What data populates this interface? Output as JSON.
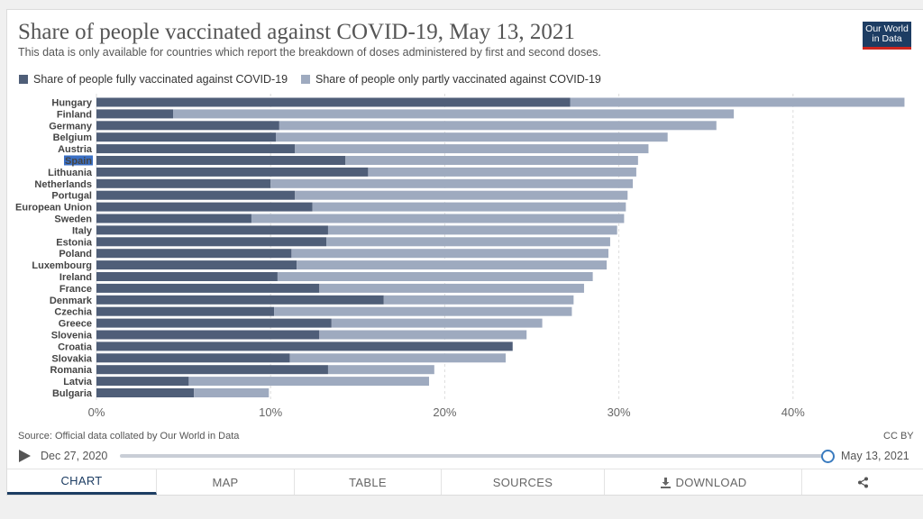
{
  "header": {
    "title": "Share of people vaccinated against COVID-19, May 13, 2021",
    "subtitle": "This data is only available for countries which report the breakdown of doses administered by first and second doses.",
    "logo_line1": "Our World",
    "logo_line2": "in Data"
  },
  "legend": {
    "fully": "Share of people fully vaccinated against COVID-19",
    "partly": "Share of people only partly vaccinated against COVID-19"
  },
  "colors": {
    "fully": "#4f5e78",
    "partly": "#9eaabf",
    "grid": "#dddddd",
    "highlight": "#3a6fc4"
  },
  "chart_data": {
    "type": "bar",
    "orientation": "horizontal",
    "stacked": true,
    "title": "Share of people vaccinated against COVID-19, May 13, 2021",
    "categories": [
      "Hungary",
      "Finland",
      "Germany",
      "Belgium",
      "Austria",
      "Spain",
      "Lithuania",
      "Netherlands",
      "Portugal",
      "European Union",
      "Sweden",
      "Italy",
      "Estonia",
      "Poland",
      "Luxembourg",
      "Ireland",
      "France",
      "Denmark",
      "Czechia",
      "Greece",
      "Slovenia",
      "Croatia",
      "Slovakia",
      "Romania",
      "Latvia",
      "Bulgaria"
    ],
    "highlighted": "Spain",
    "series": [
      {
        "name": "Share of people fully vaccinated against COVID-19",
        "values": [
          27.2,
          4.4,
          10.5,
          10.3,
          11.4,
          14.3,
          15.6,
          10.0,
          11.4,
          12.4,
          8.9,
          13.3,
          13.2,
          11.2,
          11.5,
          10.4,
          12.8,
          16.5,
          10.2,
          13.5,
          12.8,
          23.9,
          11.1,
          13.3,
          5.3,
          5.6
        ]
      },
      {
        "name": "Share of people only partly vaccinated against COVID-19",
        "values": [
          19.2,
          32.2,
          25.1,
          22.5,
          20.3,
          16.8,
          15.4,
          20.8,
          19.1,
          18.0,
          21.4,
          16.6,
          16.3,
          18.2,
          17.8,
          18.1,
          15.2,
          10.9,
          17.1,
          12.1,
          11.9,
          0.0,
          12.4,
          6.1,
          13.8,
          4.3
        ]
      }
    ],
    "xlim": [
      0,
      45
    ],
    "xticks": [
      0,
      10,
      20,
      30,
      40
    ],
    "xtick_labels": [
      "0%",
      "10%",
      "20%",
      "30%",
      "40%"
    ]
  },
  "footer": {
    "source": "Source: Official data collated by Our World in Data",
    "license": "CC BY",
    "start_date": "Dec 27, 2020",
    "end_date": "May 13, 2021"
  },
  "tabs": [
    "CHART",
    "MAP",
    "TABLE",
    "SOURCES",
    "DOWNLOAD",
    ""
  ]
}
